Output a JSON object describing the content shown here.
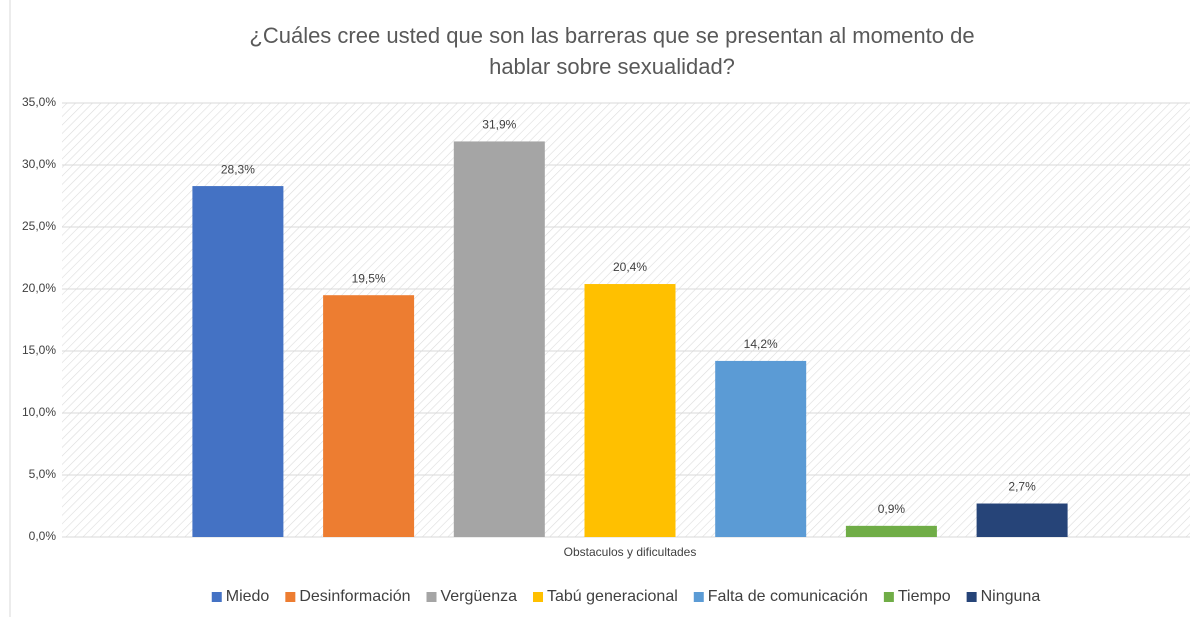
{
  "chart_data": {
    "type": "bar",
    "title": "¿Cuáles cree usted que son las barreras que se presentan al momento de hablar sobre sexualidad?",
    "categories": [
      "Obstaculos y dificultades"
    ],
    "series": [
      {
        "name": "Miedo",
        "color": "#4472c4",
        "values": [
          28.3
        ],
        "value_labels": [
          "28,3%"
        ]
      },
      {
        "name": "Desinformación",
        "color": "#ed7d31",
        "values": [
          19.5
        ],
        "value_labels": [
          "19,5%"
        ]
      },
      {
        "name": "Vergüenza",
        "color": "#a5a5a5",
        "values": [
          31.9
        ],
        "value_labels": [
          "31,9%"
        ]
      },
      {
        "name": "Tabú generacional",
        "color": "#ffc000",
        "values": [
          20.4
        ],
        "value_labels": [
          "20,4%"
        ]
      },
      {
        "name": "Falta de comunicación",
        "color": "#5b9bd5",
        "values": [
          14.2
        ],
        "value_labels": [
          "14,2%"
        ]
      },
      {
        "name": "Tiempo",
        "color": "#70ad47",
        "values": [
          0.9
        ],
        "value_labels": [
          "0,9%"
        ]
      },
      {
        "name": "Ninguna",
        "color": "#264478",
        "values": [
          2.7
        ],
        "value_labels": [
          "2,7%"
        ]
      }
    ],
    "ylim": [
      0,
      35
    ],
    "yticks": [
      {
        "value": 0,
        "label": "0,0%"
      },
      {
        "value": 5,
        "label": "5,0%"
      },
      {
        "value": 10,
        "label": "10,0%"
      },
      {
        "value": 15,
        "label": "15,0%"
      },
      {
        "value": 20,
        "label": "20,0%"
      },
      {
        "value": 25,
        "label": "25,0%"
      },
      {
        "value": 30,
        "label": "30,0%"
      },
      {
        "value": 35,
        "label": "35,0%"
      }
    ],
    "grid": true,
    "legend": "bottom"
  }
}
